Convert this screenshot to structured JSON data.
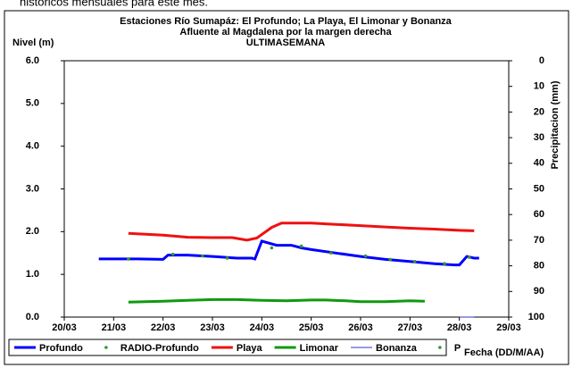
{
  "caption": "históricos mensuales para este mes.",
  "chart_data": {
    "type": "line",
    "title": [
      "Estaciones Río Sumapáz: El Profundo; La Playa, El Limonar y Bonanza",
      "Afluente al Magdalena por la margen derecha",
      "ULTIMASEMANA"
    ],
    "y_label": "Nivel (m)",
    "y2_label": "Precipitacion (mm)",
    "x_label": "Fecha (DD/M/AA)",
    "xlim": [
      20,
      29
    ],
    "xticks": [
      {
        "value": 20,
        "label": "20/03"
      },
      {
        "value": 21,
        "label": "21/03"
      },
      {
        "value": 22,
        "label": "22/03"
      },
      {
        "value": 23,
        "label": "23/03"
      },
      {
        "value": 24,
        "label": "24/03"
      },
      {
        "value": 25,
        "label": "25/03"
      },
      {
        "value": 26,
        "label": "26/03"
      },
      {
        "value": 27,
        "label": "27/03"
      },
      {
        "value": 28,
        "label": "28/03"
      },
      {
        "value": 29,
        "label": "29/03"
      }
    ],
    "ylim": [
      0,
      6
    ],
    "yticks": [
      {
        "value": 0,
        "label": "0.0"
      },
      {
        "value": 1,
        "label": "1.0"
      },
      {
        "value": 2,
        "label": "2.0"
      },
      {
        "value": 3,
        "label": "3.0"
      },
      {
        "value": 4,
        "label": "4.0"
      },
      {
        "value": 5,
        "label": "5.0"
      },
      {
        "value": 6,
        "label": "6.0"
      }
    ],
    "y2lim": [
      100,
      0
    ],
    "y2ticks": [
      0,
      10,
      20,
      30,
      40,
      50,
      60,
      70,
      80,
      90,
      100
    ],
    "series": [
      {
        "name": "Profundo",
        "color": "#0000ff",
        "width": 3,
        "marker": false,
        "x": [
          20.7,
          21.5,
          22.0,
          22.1,
          22.5,
          23.0,
          23.5,
          23.8,
          23.86,
          24.0,
          24.3,
          24.6,
          24.8,
          25.0,
          25.5,
          26.0,
          26.5,
          27.0,
          27.5,
          27.9,
          28.0,
          28.15,
          28.3,
          28.4
        ],
        "values": [
          1.36,
          1.36,
          1.35,
          1.45,
          1.45,
          1.42,
          1.38,
          1.38,
          1.36,
          1.78,
          1.68,
          1.68,
          1.62,
          1.58,
          1.5,
          1.42,
          1.35,
          1.3,
          1.25,
          1.22,
          1.22,
          1.42,
          1.38,
          1.38
        ]
      },
      {
        "name": "RADIO-Profundo",
        "color": "#339933",
        "marker": true,
        "x": [
          21.3,
          22.2,
          22.8,
          23.3,
          24.2,
          24.8,
          25.4,
          26.1,
          26.6,
          27.1,
          27.7,
          28.2
        ],
        "values": [
          1.36,
          1.47,
          1.43,
          1.38,
          1.62,
          1.66,
          1.5,
          1.43,
          1.35,
          1.3,
          1.25,
          1.4
        ]
      },
      {
        "name": "Playa",
        "color": "#ee1111",
        "width": 3,
        "marker": false,
        "x": [
          21.3,
          22.0,
          22.5,
          23.0,
          23.4,
          23.7,
          23.9,
          24.2,
          24.4,
          25.0,
          25.5,
          26.0,
          26.5,
          27.0,
          27.5,
          28.0,
          28.3
        ],
        "values": [
          1.96,
          1.92,
          1.87,
          1.86,
          1.86,
          1.8,
          1.85,
          2.1,
          2.2,
          2.2,
          2.17,
          2.14,
          2.11,
          2.08,
          2.06,
          2.03,
          2.02
        ]
      },
      {
        "name": "Limonar",
        "color": "#119911",
        "width": 3,
        "marker": false,
        "x": [
          21.3,
          22.0,
          22.5,
          23.0,
          23.5,
          24.0,
          24.5,
          25.0,
          25.3,
          25.7,
          26.0,
          26.5,
          27.0,
          27.3
        ],
        "values": [
          0.35,
          0.37,
          0.39,
          0.41,
          0.41,
          0.39,
          0.38,
          0.4,
          0.4,
          0.38,
          0.36,
          0.36,
          0.38,
          0.37
        ]
      },
      {
        "name": "Bonanza",
        "color": "#3333cc",
        "width": 1,
        "marker": false,
        "x": [
          28.0,
          28.3
        ],
        "values": [
          0,
          0
        ]
      },
      {
        "name": "P",
        "color": "#339933",
        "marker": true,
        "axis": "y2",
        "x": [],
        "values": []
      }
    ]
  }
}
